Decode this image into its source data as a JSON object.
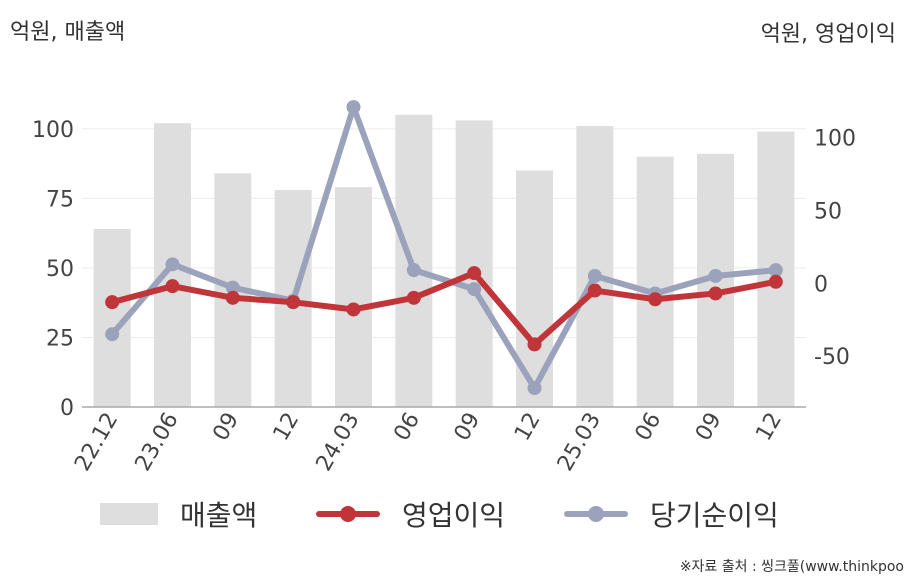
{
  "units": {
    "left": "억원, 매출액",
    "right": "억원, 영업이익"
  },
  "source": "※자료 출처 : 씽크풀(www.thinkpoo",
  "chart_data": {
    "type": "bar",
    "categories": [
      "22.12",
      "23.06",
      "09",
      "12",
      "24.03",
      "06",
      "09",
      "12",
      "25.03",
      "06",
      "09",
      "12"
    ],
    "left_axis": {
      "ylim": [
        0,
        112.5
      ],
      "ticks": [
        0,
        25,
        50,
        75,
        100
      ]
    },
    "right_axis": {
      "ylim": [
        -85,
        130
      ],
      "ticks": [
        -50,
        0,
        50,
        100
      ]
    },
    "grid": true,
    "legend_position": "bottom",
    "series": [
      {
        "name": "매출액",
        "type": "bar",
        "axis": "left",
        "color": "#dedede",
        "values": [
          64,
          102,
          84,
          78,
          79,
          105,
          103,
          85,
          101,
          90,
          91,
          99
        ]
      },
      {
        "name": "영업이익",
        "type": "line",
        "axis": "right",
        "color": "#c0353a",
        "values": [
          -13,
          -2,
          -10,
          -13,
          -18,
          -10,
          7,
          -42,
          -5,
          -11,
          -7,
          1
        ]
      },
      {
        "name": "당기순이익",
        "type": "line",
        "axis": "right",
        "color": "#9aa3bb",
        "values": [
          -35,
          13,
          -3,
          -12,
          121,
          9,
          -4,
          -72,
          5,
          -7,
          5,
          9
        ]
      }
    ]
  }
}
